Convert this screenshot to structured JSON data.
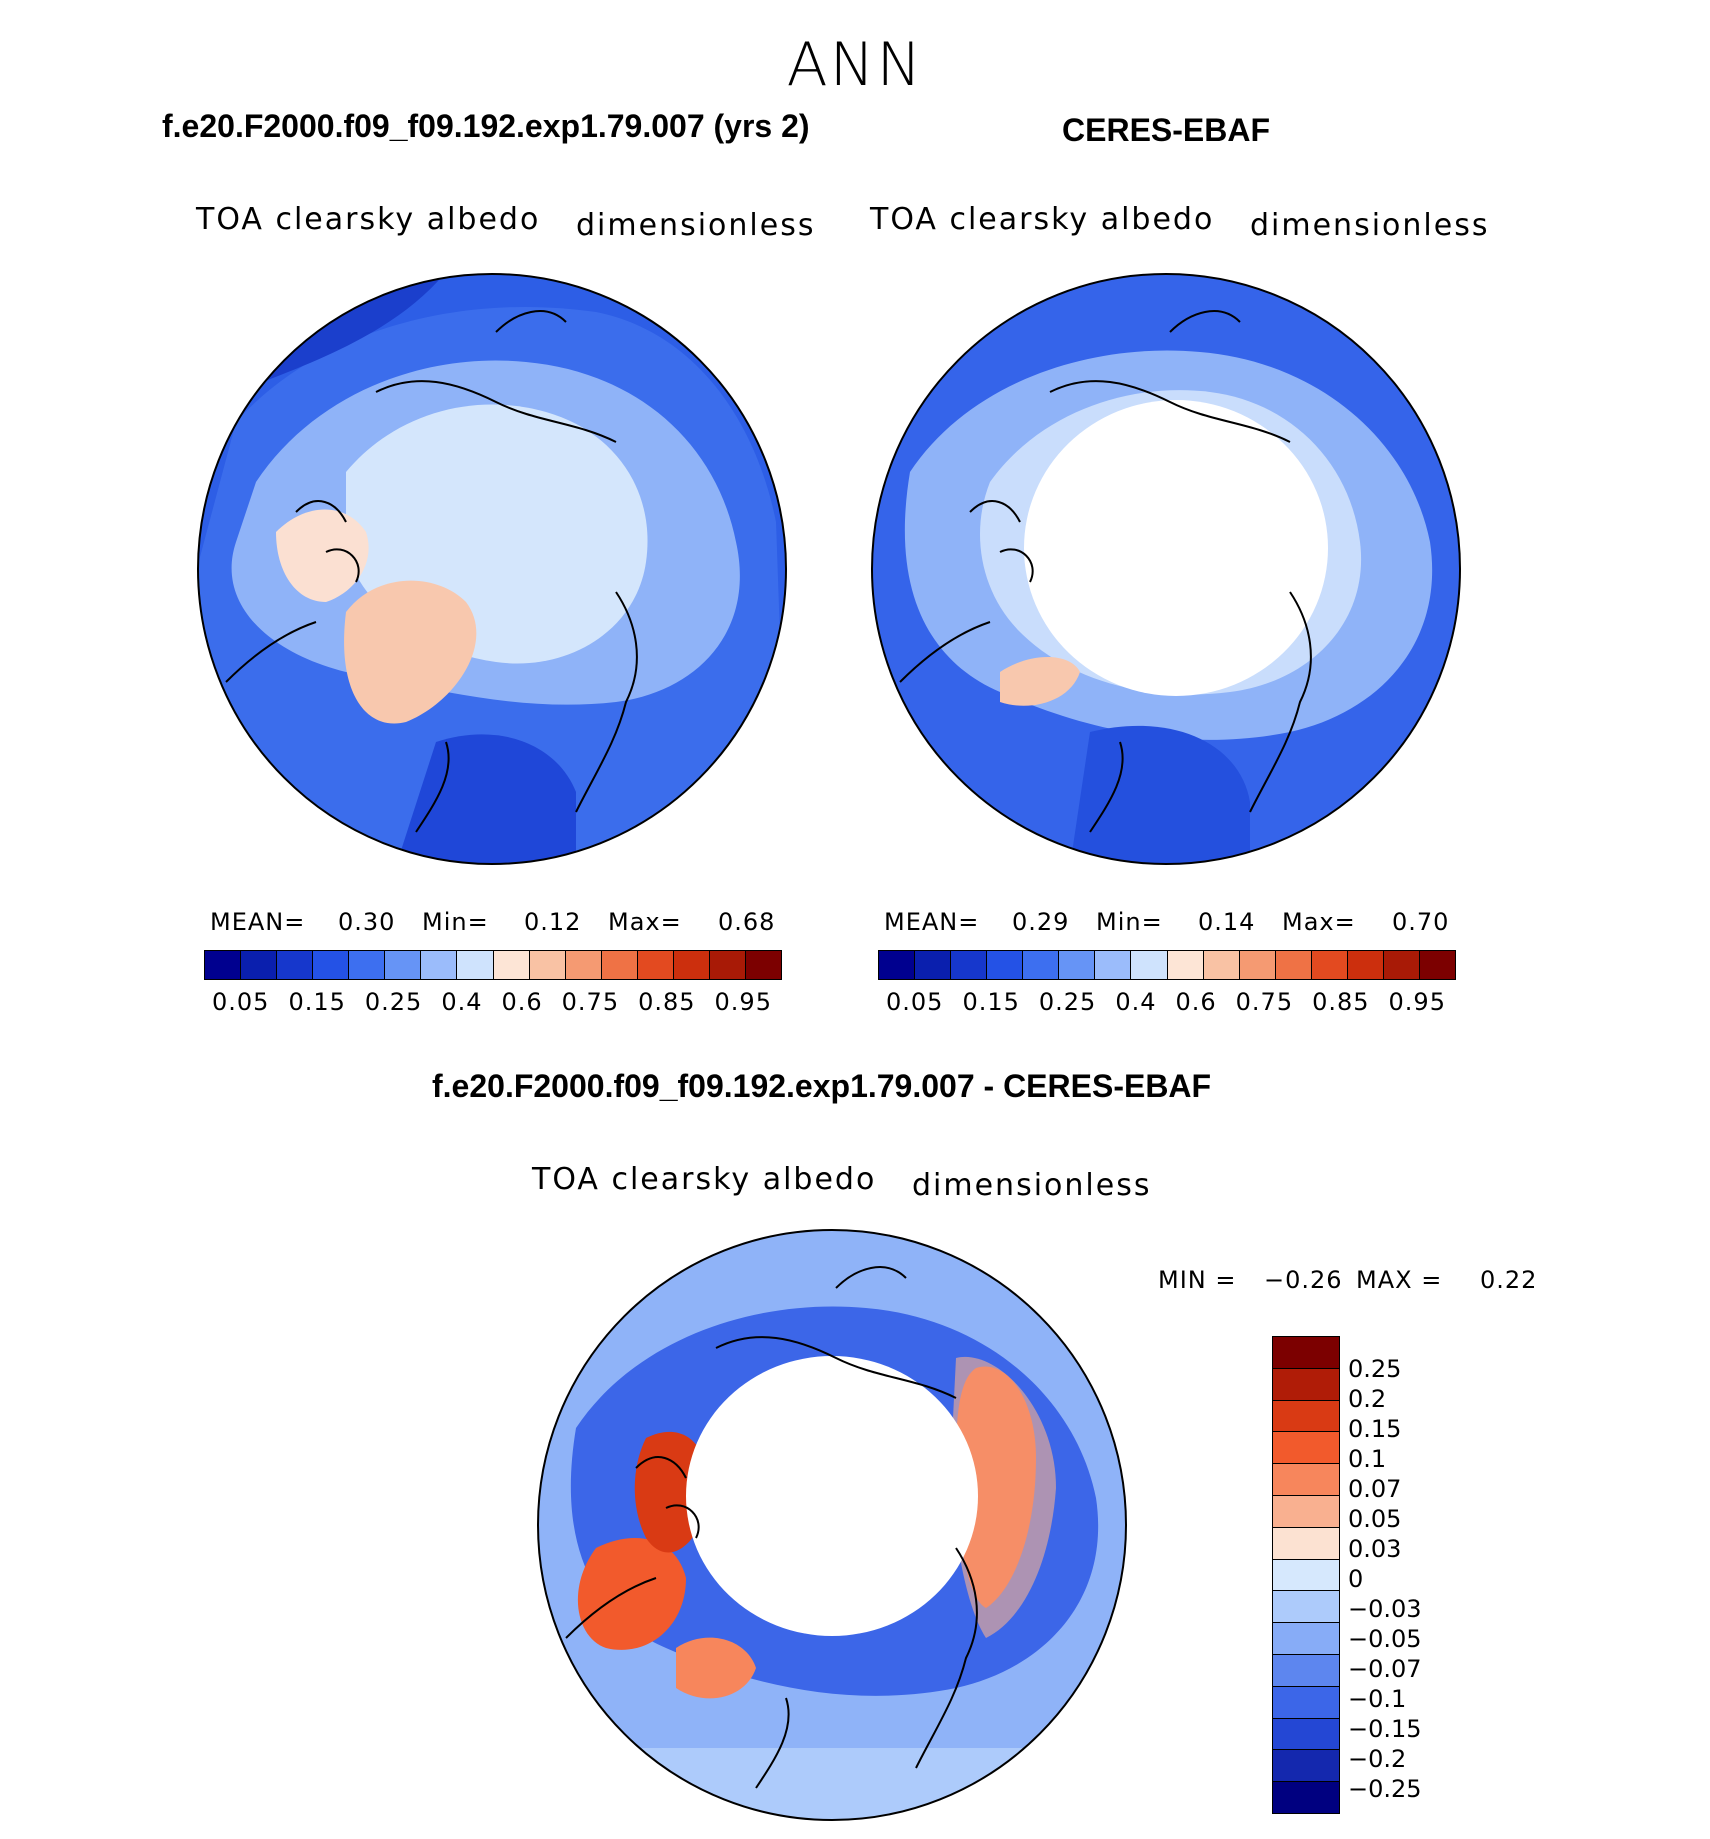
{
  "page_title": "ANN",
  "panels": [
    {
      "title": "f.e20.F2000.f09_f09.192.exp1.79.007 (yrs 2)",
      "variable": "TOA clearsky albedo",
      "units": "dimensionless",
      "mean_label": "MEAN=",
      "mean_value": "0.30",
      "min_label": "Min=",
      "min_value": "0.12",
      "max_label": "Max=",
      "max_value": "0.68"
    },
    {
      "title": "CERES-EBAF",
      "variable": "TOA clearsky albedo",
      "units": "dimensionless",
      "mean_label": "MEAN=",
      "mean_value": "0.29",
      "min_label": "Min=",
      "min_value": "0.14",
      "max_label": "Max=",
      "max_value": "0.70"
    }
  ],
  "diff_panel": {
    "title": "f.e20.F2000.f09_f09.192.exp1.79.007 - CERES-EBAF",
    "variable": "TOA clearsky albedo",
    "units": "dimensionless",
    "min_label": "MIN =",
    "min_value": "−0.26",
    "max_label": "MAX =",
    "max_value": "0.22"
  },
  "chart_data": [
    {
      "type": "heatmap",
      "projection": "north-polar-stereographic",
      "title": "f.e20.F2000.f09_f09.192.exp1.79.007 (yrs 2)",
      "colorbar_ticks": [
        "0.05",
        "0.15",
        "0.25",
        "0.4",
        "0.6",
        "0.75",
        "0.85",
        "0.95"
      ],
      "colorbar_colors": [
        "#00008f",
        "#0a1fae",
        "#1637cc",
        "#2452e6",
        "#3d6ff0",
        "#6694f6",
        "#9bbcfb",
        "#cfe3fd",
        "#fde5d6",
        "#f9c2a4",
        "#f59a72",
        "#ef7245",
        "#e34a20",
        "#cc2f0d",
        "#a81a06",
        "#7c0000"
      ]
    },
    {
      "type": "heatmap",
      "projection": "north-polar-stereographic",
      "title": "CERES-EBAF",
      "colorbar_ticks": [
        "0.05",
        "0.15",
        "0.25",
        "0.4",
        "0.6",
        "0.75",
        "0.85",
        "0.95"
      ],
      "colorbar_colors": [
        "#00008f",
        "#0a1fae",
        "#1637cc",
        "#2452e6",
        "#3d6ff0",
        "#6694f6",
        "#9bbcfb",
        "#cfe3fd",
        "#fde5d6",
        "#f9c2a4",
        "#f59a72",
        "#ef7245",
        "#e34a20",
        "#cc2f0d",
        "#a81a06",
        "#7c0000"
      ]
    },
    {
      "type": "heatmap",
      "projection": "north-polar-stereographic",
      "title": "f.e20.F2000.f09_f09.192.exp1.79.007 - CERES-EBAF",
      "colorbar_ticks": [
        "0.25",
        "0.2",
        "0.15",
        "0.1",
        "0.07",
        "0.05",
        "0.03",
        "0",
        "−0.03",
        "−0.05",
        "−0.07",
        "−0.1",
        "−0.15",
        "−0.2",
        "−0.25"
      ],
      "colorbar_colors": [
        "#7c0000",
        "#b01c07",
        "#d93a14",
        "#f25a2c",
        "#f7865c",
        "#f9b090",
        "#fce2d2",
        "#d6e8fd",
        "#adcbfb",
        "#87acf7",
        "#5d86ef",
        "#3c66e8",
        "#2447d4",
        "#1428ae",
        "#000080"
      ]
    }
  ]
}
